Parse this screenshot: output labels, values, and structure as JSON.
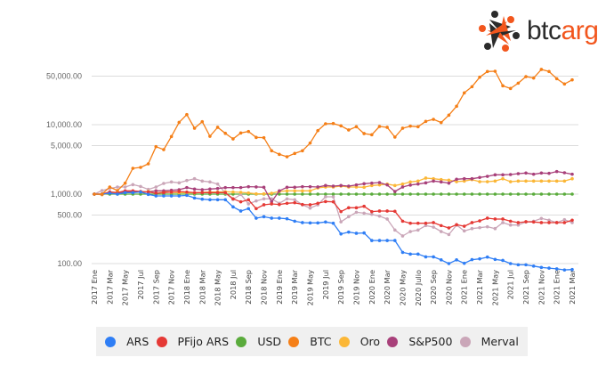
{
  "logo": {
    "text_dark": "btc",
    "text_accent": "arg",
    "accent_color": "#f2561d",
    "dark_color": "#2b2b2b"
  },
  "chart_data": {
    "type": "line",
    "title": "",
    "xlabel": "",
    "ylabel": "",
    "y_scale": "log",
    "ylim": [
      70,
      70000
    ],
    "grid": true,
    "legend_position": "bottom",
    "y_ticks": [
      {
        "value": 50000,
        "label": "50,000.00"
      },
      {
        "value": 10000,
        "label": "10,000.00"
      },
      {
        "value": 5000,
        "label": "5,000.00"
      },
      {
        "value": 1000,
        "label": "1,000.00"
      },
      {
        "value": 500,
        "label": "500.00"
      },
      {
        "value": 100,
        "label": "100.00"
      }
    ],
    "x_tick_labels": [
      "2017 Ene",
      "2017 Mar",
      "2017 May",
      "2017 Jul",
      "2017 Sep",
      "2017 Nov",
      "2018 Ene",
      "2018 Mar",
      "2018 May",
      "2018 Jul",
      "2018 Sep",
      "2018 Nov",
      "2019 Ene",
      "2019 Mar",
      "2019 May",
      "2019 Jul",
      "2019 Sep",
      "2019 Nov",
      "2020 Ene",
      "2020 Mar",
      "2020 May",
      "2020 Julio",
      "2020 Sep",
      "2020 Nov",
      "2021 Ene",
      "2021 Mar",
      "2021 May",
      "2021 Jul",
      "2021 Sep",
      "2021 Nov",
      "2021 Ene",
      "2021 Mar"
    ],
    "series": [
      {
        "name": "ARS",
        "color": "#2f7ef5",
        "values": [
          1000,
          1000,
          1030,
          1000,
          1050,
          1050,
          1072,
          990,
          942,
          942,
          942,
          942,
          960,
          880,
          845,
          830,
          830,
          830,
          655,
          571,
          618,
          451,
          473,
          451,
          451,
          442,
          408,
          389,
          385,
          385,
          397,
          381,
          267,
          284,
          273,
          276,
          215,
          215,
          215,
          215,
          145,
          137,
          137,
          125,
          125,
          113,
          100,
          113,
          101,
          114,
          117,
          124,
          115,
          111,
          100,
          96,
          96,
          92,
          88,
          86,
          84,
          81,
          82
        ]
      },
      {
        "name": "PFijo ARS",
        "color": "#e53935",
        "values": [
          1000,
          1000,
          1072,
          1050,
          1114,
          1114,
          1092,
          1072,
          1030,
          1050,
          1072,
          1092,
          1072,
          1050,
          1050,
          1050,
          1050,
          1050,
          855,
          774,
          830,
          618,
          702,
          723,
          709,
          738,
          752,
          709,
          702,
          738,
          782,
          774,
          560,
          636,
          636,
          668,
          560,
          571,
          571,
          565,
          408,
          381,
          381,
          381,
          389,
          352,
          326,
          363,
          345,
          389,
          412,
          451,
          438,
          438,
          408,
          389,
          401,
          397,
          389,
          389,
          389,
          389,
          421
        ]
      },
      {
        "name": "USD",
        "color": "#5aab3c",
        "values": [
          1000,
          1000,
          1000,
          1000,
          1000,
          1000,
          1000,
          1000,
          1000,
          1000,
          1000,
          1000,
          1000,
          1000,
          1000,
          1000,
          1000,
          1000,
          1000,
          1000,
          1000,
          1000,
          1000,
          1000,
          1000,
          1000,
          1000,
          1000,
          1000,
          1000,
          1000,
          1000,
          1000,
          1000,
          1000,
          1000,
          1000,
          1000,
          1000,
          1000,
          1000,
          1000,
          1000,
          1000,
          1000,
          1000,
          1000,
          1000,
          1000,
          1000,
          1000,
          1000,
          1000,
          1000,
          1000,
          1000,
          1000,
          1000,
          1000,
          1000,
          1000,
          1000,
          1000
        ]
      },
      {
        "name": "BTC",
        "color": "#f57f17",
        "values": [
          1000,
          1000,
          1266,
          1125,
          1437,
          2354,
          2424,
          2728,
          4830,
          4375,
          6750,
          10800,
          13970,
          8890,
          11040,
          6810,
          9160,
          7510,
          6240,
          7590,
          7980,
          6550,
          6490,
          4210,
          3740,
          3455,
          3850,
          4210,
          5430,
          8220,
          10300,
          10400,
          9620,
          8380,
          9340,
          7450,
          7160,
          9430,
          9160,
          6620,
          8890,
          9520,
          9340,
          11150,
          11940,
          10720,
          13700,
          18400,
          28650,
          35200,
          48300,
          58200,
          58800,
          36300,
          33200,
          39600,
          49200,
          46900,
          62400,
          58200,
          45900,
          38500,
          44200
        ]
      },
      {
        "name": "Oro",
        "color": "#fbb737",
        "values": [
          1000,
          980,
          1040,
          1050,
          1060,
          1070,
          1070,
          1090,
          1110,
          1100,
          1060,
          1050,
          1050,
          1040,
          1060,
          1070,
          1072,
          1080,
          1072,
          1060,
          1040,
          1009,
          1009,
          1030,
          1092,
          1114,
          1114,
          1114,
          1114,
          1230,
          1267,
          1267,
          1304,
          1267,
          1267,
          1254,
          1330,
          1356,
          1397,
          1330,
          1397,
          1500,
          1542,
          1702,
          1667,
          1620,
          1589,
          1511,
          1542,
          1620,
          1511,
          1511,
          1542,
          1667,
          1511,
          1542,
          1542,
          1542,
          1542,
          1542,
          1542,
          1542,
          1667
        ]
      },
      {
        "name": "S&P500",
        "color": "#a8407a",
        "values": [
          1000,
          1000,
          1072,
          1050,
          1072,
          1092,
          1072,
          1072,
          1114,
          1114,
          1136,
          1159,
          1242,
          1182,
          1159,
          1182,
          1205,
          1242,
          1242,
          1242,
          1280,
          1270,
          1254,
          774,
          1114,
          1254,
          1254,
          1280,
          1280,
          1267,
          1330,
          1304,
          1330,
          1304,
          1356,
          1412,
          1440,
          1468,
          1356,
          1092,
          1267,
          1350,
          1397,
          1453,
          1542,
          1497,
          1440,
          1636,
          1667,
          1667,
          1738,
          1804,
          1896,
          1896,
          1914,
          1972,
          2013,
          1933,
          2013,
          1992,
          2115,
          2031,
          1933
        ]
      },
      {
        "name": "Merval",
        "color": "#caa6b8",
        "values": [
          1000,
          1125,
          1206,
          1266,
          1266,
          1370,
          1290,
          1170,
          1266,
          1425,
          1497,
          1453,
          1573,
          1667,
          1542,
          1497,
          1397,
          1040,
          838,
          990,
          723,
          797,
          855,
          855,
          738,
          855,
          830,
          702,
          629,
          702,
          915,
          915,
          399,
          473,
          548,
          532,
          512,
          483,
          438,
          304,
          250,
          289,
          304,
          352,
          335,
          289,
          262,
          359,
          295,
          319,
          329,
          339,
          319,
          389,
          359,
          359,
          397,
          408,
          447,
          421,
          389,
          429,
          389
        ]
      }
    ]
  }
}
